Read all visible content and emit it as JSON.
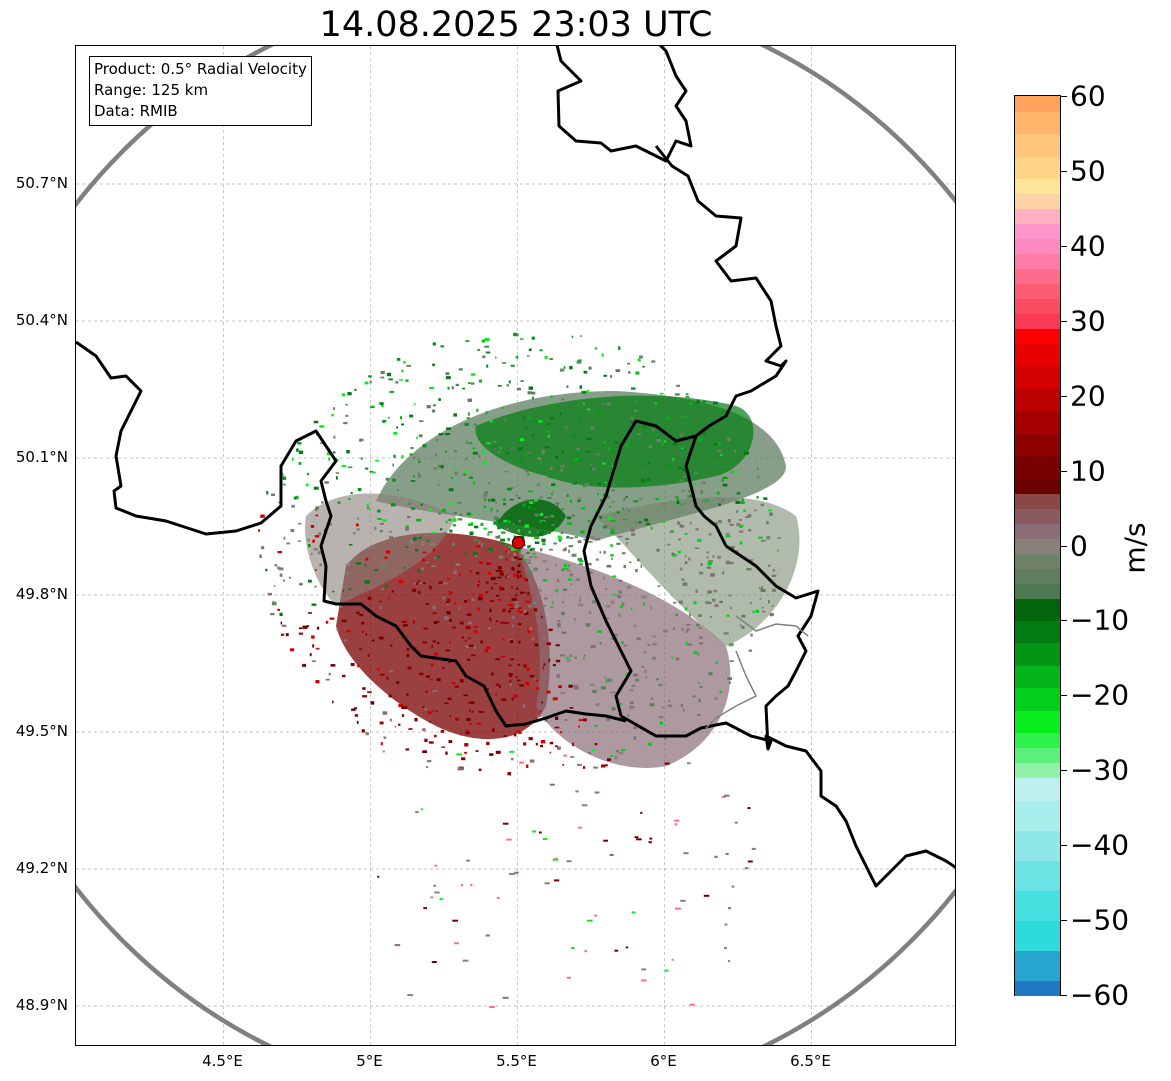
{
  "title": "14.08.2025 23:03 UTC",
  "info": {
    "product": "Product: 0.5° Radial Velocity",
    "range": "Range: 125 km",
    "source": "Data: RMIB"
  },
  "map": {
    "lon_range": [
      4.0,
      7.0
    ],
    "lat_range": [
      48.8,
      50.97
    ],
    "radar_site": {
      "lon": 5.505,
      "lat": 49.915
    },
    "lat_ticks": [
      {
        "value": 50.7,
        "label": "50.7°N"
      },
      {
        "value": 50.4,
        "label": "50.4°N"
      },
      {
        "value": 50.1,
        "label": "50.1°N"
      },
      {
        "value": 49.8,
        "label": "49.8°N"
      },
      {
        "value": 49.5,
        "label": "49.5°N"
      },
      {
        "value": 49.2,
        "label": "49.2°N"
      },
      {
        "value": 48.9,
        "label": "48.9°N"
      }
    ],
    "lon_ticks": [
      {
        "value": 4.5,
        "label": "4.5°E"
      },
      {
        "value": 5.0,
        "label": "5°E"
      },
      {
        "value": 5.5,
        "label": "5.5°E"
      },
      {
        "value": 6.0,
        "label": "6°E"
      },
      {
        "value": 6.5,
        "label": "6.5°E"
      }
    ],
    "colors": {
      "border": "#000000",
      "range_ring": "#808080",
      "grid": "#b0b0b0",
      "radar_marker": "#e00000",
      "luxembourg_cantons": "#808080"
    }
  },
  "colorbar": {
    "unit": "m/s",
    "min": -60,
    "max": 60,
    "ticks": [
      {
        "value": 60,
        "label": "60"
      },
      {
        "value": 50,
        "label": "50"
      },
      {
        "value": 40,
        "label": "40"
      },
      {
        "value": 30,
        "label": "30"
      },
      {
        "value": 20,
        "label": "20"
      },
      {
        "value": 10,
        "label": "10"
      },
      {
        "value": 0,
        "label": "0"
      },
      {
        "value": -10,
        "label": "−10"
      },
      {
        "value": -20,
        "label": "−20"
      },
      {
        "value": -30,
        "label": "−30"
      },
      {
        "value": -40,
        "label": "−40"
      },
      {
        "value": -50,
        "label": "−50"
      },
      {
        "value": -60,
        "label": "−60"
      }
    ],
    "segments": [
      {
        "from": -60,
        "to": -58,
        "color": "#2077c2"
      },
      {
        "from": -58,
        "to": -54,
        "color": "#26a5ce"
      },
      {
        "from": -54,
        "to": -50,
        "color": "#2edbdb"
      },
      {
        "from": -50,
        "to": -46,
        "color": "#47e0e0"
      },
      {
        "from": -46,
        "to": -42,
        "color": "#69e3e3"
      },
      {
        "from": -42,
        "to": -38,
        "color": "#8ee8e8"
      },
      {
        "from": -38,
        "to": -34,
        "color": "#a8ecec"
      },
      {
        "from": -34,
        "to": -31,
        "color": "#bff0f0"
      },
      {
        "from": -31,
        "to": -29,
        "color": "#8ff2a8"
      },
      {
        "from": -29,
        "to": -27,
        "color": "#5cf07a"
      },
      {
        "from": -27,
        "to": -25,
        "color": "#2ef24a"
      },
      {
        "from": -25,
        "to": -22,
        "color": "#08ee1c"
      },
      {
        "from": -22,
        "to": -19,
        "color": "#03d01b"
      },
      {
        "from": -19,
        "to": -16,
        "color": "#04b418"
      },
      {
        "from": -16,
        "to": -13,
        "color": "#039615"
      },
      {
        "from": -13,
        "to": -10,
        "color": "#027c10"
      },
      {
        "from": -10,
        "to": -7,
        "color": "#01660b"
      },
      {
        "from": -7,
        "to": -5,
        "color": "#4e7a52"
      },
      {
        "from": -5,
        "to": -3,
        "color": "#5f7e60"
      },
      {
        "from": -3,
        "to": -1,
        "color": "#6f8368"
      },
      {
        "from": -1,
        "to": 1,
        "color": "#888079"
      },
      {
        "from": 1,
        "to": 3,
        "color": "#8a6e76"
      },
      {
        "from": 3,
        "to": 5,
        "color": "#8a5a5f"
      },
      {
        "from": 5,
        "to": 7,
        "color": "#894848"
      },
      {
        "from": 7,
        "to": 9,
        "color": "#6b0000"
      },
      {
        "from": 9,
        "to": 12,
        "color": "#7a0000"
      },
      {
        "from": 12,
        "to": 15,
        "color": "#8e0000"
      },
      {
        "from": 15,
        "to": 18,
        "color": "#a50000"
      },
      {
        "from": 18,
        "to": 21,
        "color": "#bb0000"
      },
      {
        "from": 21,
        "to": 24,
        "color": "#d40000"
      },
      {
        "from": 24,
        "to": 27,
        "color": "#e80000"
      },
      {
        "from": 27,
        "to": 29,
        "color": "#fb0000"
      },
      {
        "from": 29,
        "to": 31,
        "color": "#f83a55"
      },
      {
        "from": 31,
        "to": 33,
        "color": "#fb4b62"
      },
      {
        "from": 33,
        "to": 35,
        "color": "#fc5c72"
      },
      {
        "from": 35,
        "to": 37,
        "color": "#fd6c8a"
      },
      {
        "from": 37,
        "to": 39,
        "color": "#fe7ca6"
      },
      {
        "from": 39,
        "to": 41,
        "color": "#fe88c0"
      },
      {
        "from": 41,
        "to": 43,
        "color": "#fe96cc"
      },
      {
        "from": 43,
        "to": 45,
        "color": "#fdb0c0"
      },
      {
        "from": 45,
        "to": 47,
        "color": "#fdd3a6"
      },
      {
        "from": 47,
        "to": 49,
        "color": "#fee597"
      },
      {
        "from": 49,
        "to": 52,
        "color": "#fed486"
      },
      {
        "from": 52,
        "to": 55,
        "color": "#ffc57a"
      },
      {
        "from": 55,
        "to": 58,
        "color": "#ffb56c"
      },
      {
        "from": 58,
        "to": 60,
        "color": "#ffa35c"
      }
    ]
  }
}
